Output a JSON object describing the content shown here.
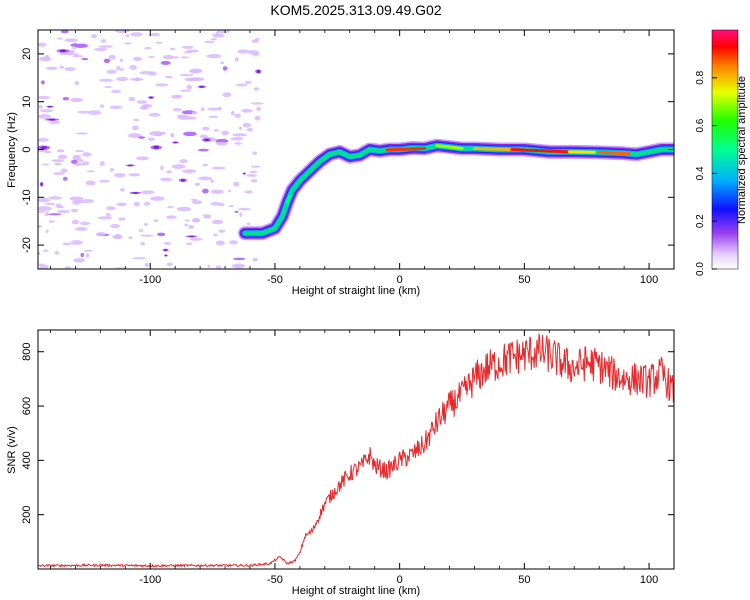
{
  "figure_title": "KOM5.2025.313.09.49.G02",
  "chart_data": [
    {
      "type": "heatmap",
      "title": "KOM5.2025.313.09.49.G02",
      "xlabel": "Height of straight line (km)",
      "ylabel": "Frequency (Hz)",
      "xlim": [
        -145,
        110
      ],
      "ylim": [
        -25,
        25
      ],
      "xticks": [
        -100,
        -50,
        0,
        50,
        100
      ],
      "yticks": [
        -20,
        -10,
        0,
        10,
        20
      ],
      "xtick_labels": [
        "-100",
        "-50",
        "0",
        "50",
        "100"
      ],
      "ytick_labels": [
        "-20",
        "-10",
        "0",
        "10",
        "20"
      ],
      "colorbar": {
        "label": "Normalized spectral amplitude",
        "range": [
          0,
          1
        ],
        "ticks": [
          0.0,
          0.2,
          0.4,
          0.6,
          0.8
        ],
        "tick_labels": [
          "0.0",
          "0.2",
          "0.4",
          "0.6",
          "0.8"
        ],
        "colormap": [
          "#ffffff",
          "#d8b4fe",
          "#8a2be2",
          "#0000ff",
          "#00bfff",
          "#00ff80",
          "#00ff00",
          "#ffff00",
          "#ff8000",
          "#ff0000",
          "#ff1493"
        ]
      },
      "ridge": {
        "description_values": "peak frequency trace (Hz) vs height (km)",
        "x": [
          -62,
          -55,
          -50,
          -47,
          -45,
          -43,
          -40,
          -36,
          -32,
          -28,
          -24,
          -20,
          -16,
          -12,
          -8,
          -4,
          0,
          5,
          10,
          15,
          20,
          25,
          30,
          40,
          50,
          60,
          70,
          80,
          90,
          95,
          100,
          105,
          110
        ],
        "y": [
          -17.5,
          -17.5,
          -16.5,
          -14,
          -11,
          -8.5,
          -6.5,
          -4.5,
          -2.5,
          -1,
          -0.5,
          -1.5,
          -1.2,
          0,
          -0.3,
          0,
          0,
          0.3,
          0.2,
          0.8,
          0.5,
          0.2,
          0.2,
          0,
          0,
          -0.5,
          -0.5,
          -0.6,
          -0.8,
          -1,
          -0.5,
          0,
          0
        ]
      },
      "noise_region_xmax": -55
    },
    {
      "type": "line",
      "title": "",
      "xlabel": "Height of straight line (km)",
      "ylabel": "SNR (v/v)",
      "xlim": [
        -145,
        110
      ],
      "ylim": [
        0,
        880
      ],
      "xticks": [
        -100,
        -50,
        0,
        50,
        100
      ],
      "yticks": [
        200,
        400,
        600,
        800
      ],
      "xtick_labels": [
        "-100",
        "-50",
        "0",
        "50",
        "100"
      ],
      "ytick_labels": [
        "200",
        "400",
        "600",
        "800"
      ],
      "series": [
        {
          "name": "SNR",
          "color": "#e8282b",
          "x": [
            -145,
            -120,
            -100,
            -80,
            -60,
            -52,
            -48,
            -45,
            -42,
            -40,
            -38,
            -35,
            -30,
            -25,
            -20,
            -15,
            -12,
            -10,
            -5,
            0,
            5,
            10,
            15,
            20,
            25,
            30,
            35,
            40,
            45,
            50,
            55,
            60,
            65,
            70,
            75,
            80,
            85,
            90,
            95,
            100,
            105,
            110
          ],
          "y": [
            12,
            14,
            12,
            13,
            13,
            20,
            45,
            20,
            30,
            60,
            120,
            140,
            240,
            300,
            350,
            380,
            420,
            380,
            360,
            400,
            420,
            460,
            540,
            600,
            640,
            700,
            740,
            760,
            780,
            790,
            800,
            790,
            760,
            740,
            760,
            750,
            720,
            700,
            700,
            690,
            720,
            650
          ]
        }
      ],
      "annotations": [
        {
          "x": -12,
          "y": 580,
          "text": ""
        },
        {
          "x": 80,
          "y": 880,
          "text": ""
        }
      ]
    }
  ]
}
